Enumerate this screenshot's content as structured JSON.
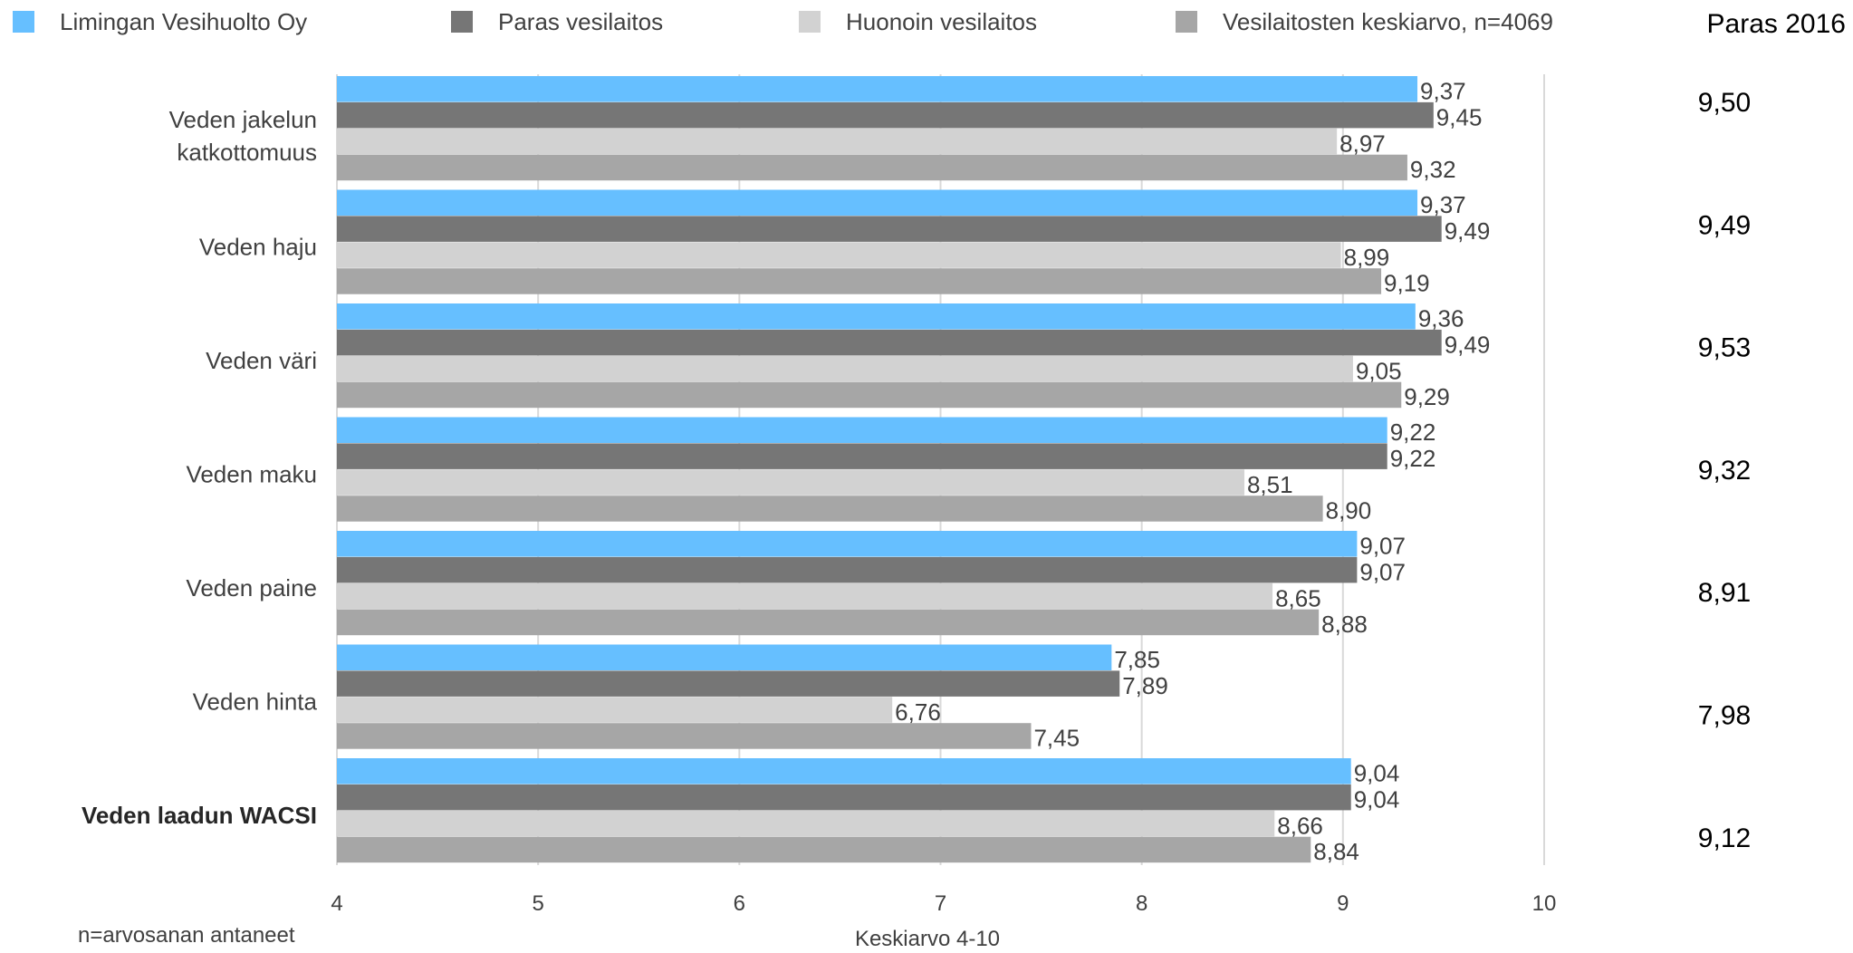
{
  "chart_data": {
    "type": "bar",
    "orientation": "horizontal",
    "categories": [
      "Veden jakelun katkottomuus",
      "Veden haju",
      "Veden väri",
      "Veden maku",
      "Veden paine",
      "Veden hinta",
      "Veden laadun WACSI"
    ],
    "series": [
      {
        "name": "Limingan Vesihuolto Oy",
        "color": "#66BFFF",
        "values": [
          9.37,
          9.37,
          9.36,
          9.22,
          9.07,
          7.85,
          9.04
        ]
      },
      {
        "name": "Paras vesilaitos",
        "color": "#767676",
        "values": [
          9.45,
          9.49,
          9.49,
          9.22,
          9.07,
          7.89,
          9.04
        ]
      },
      {
        "name": "Huonoin vesilaitos",
        "color": "#D2D2D2",
        "values": [
          8.97,
          8.99,
          9.05,
          8.51,
          8.65,
          6.76,
          8.66
        ]
      },
      {
        "name": "Vesilaitosten keskiarvo, n=4069",
        "color": "#A6A6A6",
        "values": [
          9.32,
          9.19,
          9.29,
          8.9,
          8.88,
          7.45,
          8.84
        ]
      }
    ],
    "value_labels": [
      [
        "9,37",
        "9,45",
        "8,97",
        "9,32"
      ],
      [
        "9,37",
        "9,49",
        "8,99",
        "9,19"
      ],
      [
        "9,36",
        "9,49",
        "9,05",
        "9,29"
      ],
      [
        "9,22",
        "9,22",
        "8,51",
        "8,90"
      ],
      [
        "9,07",
        "9,07",
        "8,65",
        "8,88"
      ],
      [
        "7,85",
        "7,89",
        "6,76",
        "7,45"
      ],
      [
        "9,04",
        "9,04",
        "8,66",
        "8,84"
      ]
    ],
    "xlim": [
      4,
      10
    ],
    "xticks": [
      "4",
      "5",
      "6",
      "7",
      "8",
      "9",
      "10"
    ],
    "xlabel": "Keskiarvo 4-10",
    "ylabel": "",
    "legend_position": "top",
    "grid": "vertical",
    "side_column": {
      "header": "Paras 2016",
      "values": [
        "9,50",
        "9,49",
        "9,53",
        "9,32",
        "8,91",
        "7,98",
        "9,12"
      ]
    },
    "footnote": "n=arvosanan antaneet"
  }
}
